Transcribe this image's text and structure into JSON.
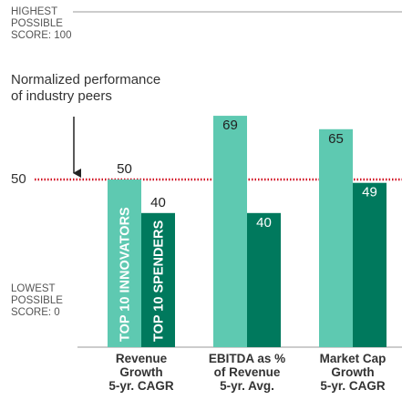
{
  "chart_data": {
    "type": "bar",
    "annotation": "Normalized performance\nof industry peers",
    "categories": [
      "Revenue\nGrowth\n5-yr. CAGR",
      "EBITDA as %\nof Revenue\n5-yr. Avg.",
      "Market Cap\nGrowth\n5-yr. CAGR"
    ],
    "series": [
      {
        "name": "TOP 10 INNOVATORS",
        "color": "#5ec9b1",
        "values": [
          50,
          69,
          65
        ]
      },
      {
        "name": "TOP 10 SPENDERS",
        "color": "#00795d",
        "values": [
          40,
          40,
          49
        ]
      }
    ],
    "ylim": [
      0,
      100
    ],
    "yticks": [
      {
        "value": 0,
        "label": "LOWEST\nPOSSIBLE\nSCORE: 0"
      },
      50,
      {
        "value": 100,
        "label": "HIGHEST\nPOSSIBLE\nSCORE: 100"
      }
    ],
    "reference_color": "#d0021b"
  }
}
